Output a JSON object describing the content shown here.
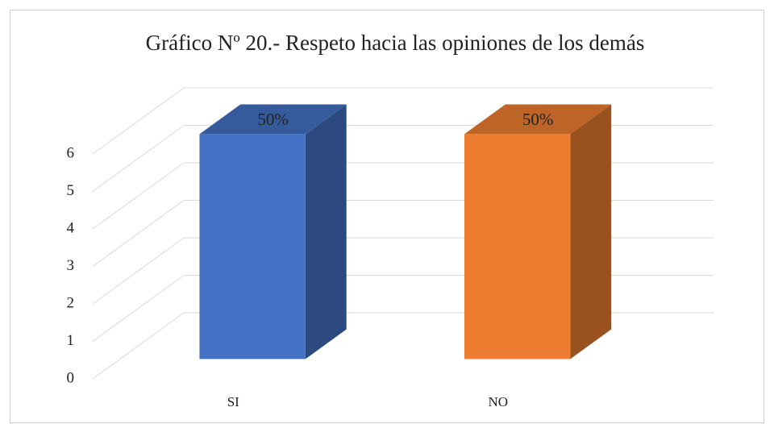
{
  "chart_data": {
    "type": "bar3d",
    "title": "Gráfico Nº 20.- Respeto hacia las opiniones de los demás",
    "categories": [
      "SI",
      "NO"
    ],
    "series": [
      {
        "name": null,
        "values": [
          6,
          6
        ],
        "value_labels": [
          "50%",
          "50%"
        ],
        "colors": [
          "#4472c4",
          "#ed7d31"
        ]
      }
    ],
    "ylim": [
      0,
      6
    ],
    "yticks": [
      0,
      1,
      2,
      3,
      4,
      5,
      6
    ],
    "grid": true
  }
}
